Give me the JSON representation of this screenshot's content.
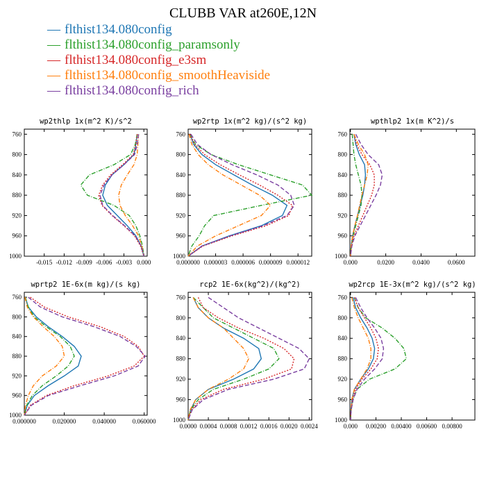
{
  "title": "CLUBB VAR at260E,12N",
  "colors": {
    "flthist134.080config": "#1f77b4",
    "flthist134.080config_paramsonly": "#2ca02c",
    "flthist134.080config_e3sm": "#d62728",
    "flthist134.080config_smoothHeaviside": "#ff7f0e",
    "flthist134.080config_rich": "#7a3fa0"
  },
  "legend": [
    {
      "label": "flthist134.080config",
      "color": "#1f77b4",
      "style": "solid"
    },
    {
      "label": "flthist134.080config_paramsonly",
      "color": "#2ca02c",
      "style": "dashdot"
    },
    {
      "label": "flthist134.080config_e3sm",
      "color": "#d62728",
      "style": "dotted"
    },
    {
      "label": "flthist134.080config_smoothHeaviside",
      "color": "#ff7f0e",
      "style": "dashdot"
    },
    {
      "label": "flthist134.080config_rich",
      "color": "#7a3fa0",
      "style": "dashed"
    }
  ],
  "chart_data": [
    {
      "type": "line",
      "title": "wp2thlp  1x(m^2 K)/s^2",
      "xlim": [
        -0.018,
        0.0005
      ],
      "ylim": [
        1000,
        750
      ],
      "xticks": [
        "-0.015",
        "-0.012",
        "-0.009",
        "-0.006",
        "-0.003",
        "0.000"
      ],
      "xtick_values": [
        -0.015,
        -0.012,
        -0.009,
        -0.006,
        -0.003,
        0.0
      ],
      "yticks": [
        760,
        800,
        840,
        880,
        920,
        960,
        1000
      ],
      "y": [
        760,
        780,
        800,
        820,
        840,
        860,
        880,
        900,
        920,
        940,
        960,
        980,
        1000
      ],
      "series": [
        {
          "key": "flthist134.080config",
          "values": [
            -0.001,
            -0.0012,
            -0.0015,
            -0.003,
            -0.0048,
            -0.0058,
            -0.0062,
            -0.0055,
            -0.004,
            -0.0025,
            -0.0012,
            -0.0004,
            0.0
          ]
        },
        {
          "key": "flthist134.080config_paramsonly",
          "values": [
            -0.001,
            -0.0013,
            -0.002,
            -0.0045,
            -0.0082,
            -0.0095,
            -0.0085,
            -0.0045,
            -0.0022,
            -0.0012,
            -0.0006,
            -0.0002,
            0.0
          ]
        },
        {
          "key": "flthist134.080config_e3sm",
          "values": [
            -0.001,
            -0.0012,
            -0.0016,
            -0.0032,
            -0.005,
            -0.0062,
            -0.0068,
            -0.0063,
            -0.0048,
            -0.003,
            -0.0014,
            -0.0005,
            0.0
          ]
        },
        {
          "key": "flthist134.080config_smoothHeaviside",
          "values": [
            -0.0008,
            -0.0009,
            -0.001,
            -0.0015,
            -0.0025,
            -0.0034,
            -0.0038,
            -0.0036,
            -0.0028,
            -0.0017,
            -0.0008,
            -0.0003,
            0.0
          ]
        },
        {
          "key": "flthist134.080config_rich",
          "values": [
            -0.0008,
            -0.001,
            -0.0014,
            -0.003,
            -0.0048,
            -0.006,
            -0.0066,
            -0.0062,
            -0.0047,
            -0.0029,
            -0.0013,
            -0.0004,
            0.0
          ]
        }
      ]
    },
    {
      "type": "line",
      "title": "wp2rtp  1x(m^2 kg)/(s^2 kg)",
      "xlim": [
        0,
        1.35e-05
      ],
      "ylim": [
        1000,
        750
      ],
      "xticks": [
        "0.000000",
        "0.000003",
        "0.000006",
        "0.000009",
        "0.000012"
      ],
      "xtick_values": [
        0,
        3e-06,
        6e-06,
        9e-06,
        1.2e-05
      ],
      "yticks": [
        760,
        800,
        840,
        880,
        920,
        960,
        1000
      ],
      "y": [
        760,
        780,
        800,
        820,
        840,
        860,
        880,
        900,
        920,
        940,
        960,
        980,
        1000
      ],
      "series": [
        {
          "key": "flthist134.080config",
          "values": [
            2e-07,
            6e-07,
            1.5e-06,
            3e-06,
            5e-06,
            7e-06,
            9.2e-06,
            1.08e-05,
            1.03e-05,
            8e-06,
            4.5e-06,
            1.5e-06,
            0.0
          ]
        },
        {
          "key": "flthist134.080config_paramsonly",
          "values": [
            2e-07,
            8e-07,
            2.5e-06,
            5.5e-06,
            9e-06,
            1.25e-05,
            1.35e-05,
            8e-06,
            2.8e-06,
            1.8e-06,
            1.2e-06,
            4e-07,
            0.0
          ]
        },
        {
          "key": "flthist134.080config_e3sm",
          "values": [
            2e-07,
            7e-07,
            1.8e-06,
            3.5e-06,
            5.6e-06,
            7.8e-06,
            9.8e-06,
            1.14e-05,
            1.1e-05,
            8.5e-06,
            4.8e-06,
            1.6e-06,
            0.0
          ]
        },
        {
          "key": "flthist134.080config_smoothHeaviside",
          "values": [
            1e-07,
            4e-07,
            1.1e-06,
            2.2e-06,
            3.8e-06,
            5.8e-06,
            7.8e-06,
            9e-06,
            8e-06,
            5.5e-06,
            3e-06,
            1e-06,
            0.0
          ]
        },
        {
          "key": "flthist134.080config_rich",
          "values": [
            3e-07,
            1e-06,
            2.5e-06,
            4.8e-06,
            7.5e-06,
            9.8e-06,
            1.12e-05,
            1.16e-05,
            1.08e-05,
            8.2e-06,
            4.6e-06,
            1.5e-06,
            0.0
          ]
        }
      ]
    },
    {
      "type": "line",
      "title": "wpthlp2  1x(m K^2)/s",
      "xlim": [
        -0.0003,
        0.0705
      ],
      "ylim": [
        1000,
        750
      ],
      "xticks": [
        "0.000",
        "0.0200",
        "0.0400",
        "0.0600"
      ],
      "xtick_values": [
        0,
        0.02,
        0.04,
        0.06
      ],
      "yticks": [
        760,
        800,
        840,
        880,
        920,
        960,
        1000
      ],
      "y": [
        760,
        780,
        800,
        820,
        840,
        860,
        880,
        900,
        920,
        940,
        960,
        980,
        1000
      ],
      "series": [
        {
          "key": "flthist134.080config",
          "values": [
            0.002,
            0.003,
            0.005,
            0.008,
            0.0085,
            0.008,
            0.007,
            0.0055,
            0.004,
            0.0025,
            0.0012,
            0.0004,
            0.0
          ]
        },
        {
          "key": "flthist134.080config_paramsonly",
          "values": [
            0.001,
            0.0015,
            0.002,
            0.003,
            0.0045,
            0.006,
            0.0065,
            0.006,
            0.0045,
            0.003,
            0.0015,
            0.0005,
            0.0
          ]
        },
        {
          "key": "flthist134.080config_e3sm",
          "values": [
            0.002,
            0.0035,
            0.0065,
            0.011,
            0.0135,
            0.0135,
            0.012,
            0.0095,
            0.007,
            0.0045,
            0.002,
            0.0006,
            0.0
          ]
        },
        {
          "key": "flthist134.080config_smoothHeaviside",
          "values": [
            0.002,
            0.0045,
            0.008,
            0.01,
            0.0095,
            0.008,
            0.0065,
            0.0052,
            0.004,
            0.0025,
            0.0012,
            0.0004,
            0.0
          ]
        },
        {
          "key": "flthist134.080config_rich",
          "values": [
            0.003,
            0.006,
            0.01,
            0.016,
            0.018,
            0.017,
            0.0145,
            0.0115,
            0.0085,
            0.0055,
            0.0025,
            0.0008,
            0.0
          ]
        }
      ]
    },
    {
      "type": "line",
      "title": "wprtp2  1E-6x(m kg)/(s kg)",
      "xlim": [
        0,
        0.0615
      ],
      "ylim": [
        1000,
        750
      ],
      "xticks": [
        "0.000000",
        "0.020000",
        "0.040000",
        "0.060000"
      ],
      "xtick_values": [
        0,
        0.02,
        0.04,
        0.06
      ],
      "yticks": [
        760,
        800,
        840,
        880,
        920,
        960,
        1000
      ],
      "y": [
        760,
        780,
        800,
        820,
        840,
        860,
        880,
        900,
        920,
        940,
        960,
        980,
        1000
      ],
      "series": [
        {
          "key": "flthist134.080config",
          "values": [
            0.0005,
            0.002,
            0.006,
            0.012,
            0.019,
            0.025,
            0.0285,
            0.027,
            0.02,
            0.012,
            0.005,
            0.0015,
            0.0
          ]
        },
        {
          "key": "flthist134.080config_paramsonly",
          "values": [
            0.0005,
            0.002,
            0.005,
            0.011,
            0.018,
            0.023,
            0.025,
            0.022,
            0.016,
            0.009,
            0.004,
            0.0012,
            0.0
          ]
        },
        {
          "key": "flthist134.080config_e3sm",
          "values": [
            0.003,
            0.01,
            0.022,
            0.038,
            0.05,
            0.057,
            0.06,
            0.055,
            0.042,
            0.025,
            0.011,
            0.003,
            0.0
          ]
        },
        {
          "key": "flthist134.080config_smoothHeaviside",
          "values": [
            0.0003,
            0.0015,
            0.0045,
            0.0095,
            0.015,
            0.019,
            0.02,
            0.016,
            0.009,
            0.0045,
            0.002,
            0.0006,
            0.0
          ]
        },
        {
          "key": "flthist134.080config_rich",
          "values": [
            0.002,
            0.008,
            0.019,
            0.035,
            0.048,
            0.056,
            0.0605,
            0.057,
            0.045,
            0.028,
            0.012,
            0.0035,
            0.0
          ]
        }
      ]
    },
    {
      "type": "line",
      "title": "rcp2  1E-6x(kg^2)/(kg^2)",
      "xlim": [
        0,
        0.00245
      ],
      "ylim": [
        1000,
        750
      ],
      "xticks": [
        "0.0000",
        "0.0004",
        "0.0008",
        "0.0012",
        "0.0016",
        "0.0020",
        "0.0024"
      ],
      "xtick_values": [
        0,
        0.0004,
        0.0008,
        0.0012,
        0.0016,
        0.002,
        0.0024
      ],
      "yticks": [
        760,
        800,
        840,
        880,
        920,
        960,
        1000
      ],
      "y": [
        760,
        780,
        800,
        820,
        840,
        860,
        880,
        900,
        920,
        940,
        960,
        980,
        1000
      ],
      "series": [
        {
          "key": "flthist134.080config",
          "values": [
            0.0001,
            0.0002,
            0.0004,
            0.0007,
            0.0011,
            0.0014,
            0.00145,
            0.0013,
            0.0009,
            0.0004,
            0.00015,
            5e-05,
            0.0
          ]
        },
        {
          "key": "flthist134.080config_paramsonly",
          "values": [
            0.0001,
            0.0003,
            0.0005,
            0.0009,
            0.0013,
            0.0017,
            0.0018,
            0.0016,
            0.0011,
            0.0005,
            0.0002,
            5e-05,
            0.0
          ]
        },
        {
          "key": "flthist134.080config_e3sm",
          "values": [
            0.0002,
            0.0003,
            0.0006,
            0.001,
            0.0015,
            0.0019,
            0.0021,
            0.00205,
            0.0015,
            0.0007,
            0.00025,
            7e-05,
            0.0
          ]
        },
        {
          "key": "flthist134.080config_smoothHeaviside",
          "values": [
            0.0001,
            0.0002,
            0.0004,
            0.0007,
            0.0009,
            0.0011,
            0.0012,
            0.0011,
            0.0008,
            0.0004,
            0.00015,
            4e-05,
            0.0
          ]
        },
        {
          "key": "flthist134.080config_rich",
          "values": [
            0.0004,
            0.0007,
            0.001,
            0.0014,
            0.0018,
            0.0022,
            0.0024,
            0.0023,
            0.0017,
            0.0008,
            0.0003,
            8e-05,
            0.0
          ]
        }
      ]
    },
    {
      "type": "line",
      "title": "wp2rcp  1E-3x(m^2 kg)/(s^2 kg)",
      "xlim": [
        -5e-05,
        0.0098
      ],
      "ylim": [
        1000,
        750
      ],
      "xticks": [
        "0.000",
        "0.00200",
        "0.00400",
        "0.00600",
        "0.00800"
      ],
      "xtick_values": [
        0,
        0.002,
        0.004,
        0.006,
        0.008
      ],
      "yticks": [
        760,
        800,
        840,
        880,
        920,
        960,
        1000
      ],
      "y": [
        760,
        780,
        800,
        820,
        840,
        860,
        880,
        900,
        920,
        940,
        960,
        980,
        1000
      ],
      "series": [
        {
          "key": "flthist134.080config",
          "values": [
            0.0002,
            0.0004,
            0.0008,
            0.0013,
            0.0017,
            0.0019,
            0.0018,
            0.0014,
            0.0008,
            0.0003,
            0.0001,
            3e-05,
            0.0
          ]
        },
        {
          "key": "flthist134.080config_paramsonly",
          "values": [
            0.0003,
            0.0006,
            0.0012,
            0.0025,
            0.0035,
            0.0042,
            0.0044,
            0.0035,
            0.0015,
            0.0005,
            0.0002,
            5e-05,
            0.0
          ]
        },
        {
          "key": "flthist134.080config_e3sm",
          "values": [
            0.0003,
            0.0006,
            0.0011,
            0.0016,
            0.002,
            0.0022,
            0.0021,
            0.0016,
            0.0009,
            0.0004,
            0.00015,
            4e-05,
            0.0
          ]
        },
        {
          "key": "flthist134.080config_smoothHeaviside",
          "values": [
            0.0001,
            0.0003,
            0.0006,
            0.001,
            0.0014,
            0.0016,
            0.0016,
            0.0013,
            0.0008,
            0.0003,
            0.0001,
            3e-05,
            0.0
          ]
        },
        {
          "key": "flthist134.080config_rich",
          "values": [
            0.0004,
            0.0008,
            0.0013,
            0.0019,
            0.0024,
            0.0026,
            0.0025,
            0.0019,
            0.0011,
            0.0005,
            0.0002,
            5e-05,
            0.0
          ]
        }
      ]
    }
  ]
}
